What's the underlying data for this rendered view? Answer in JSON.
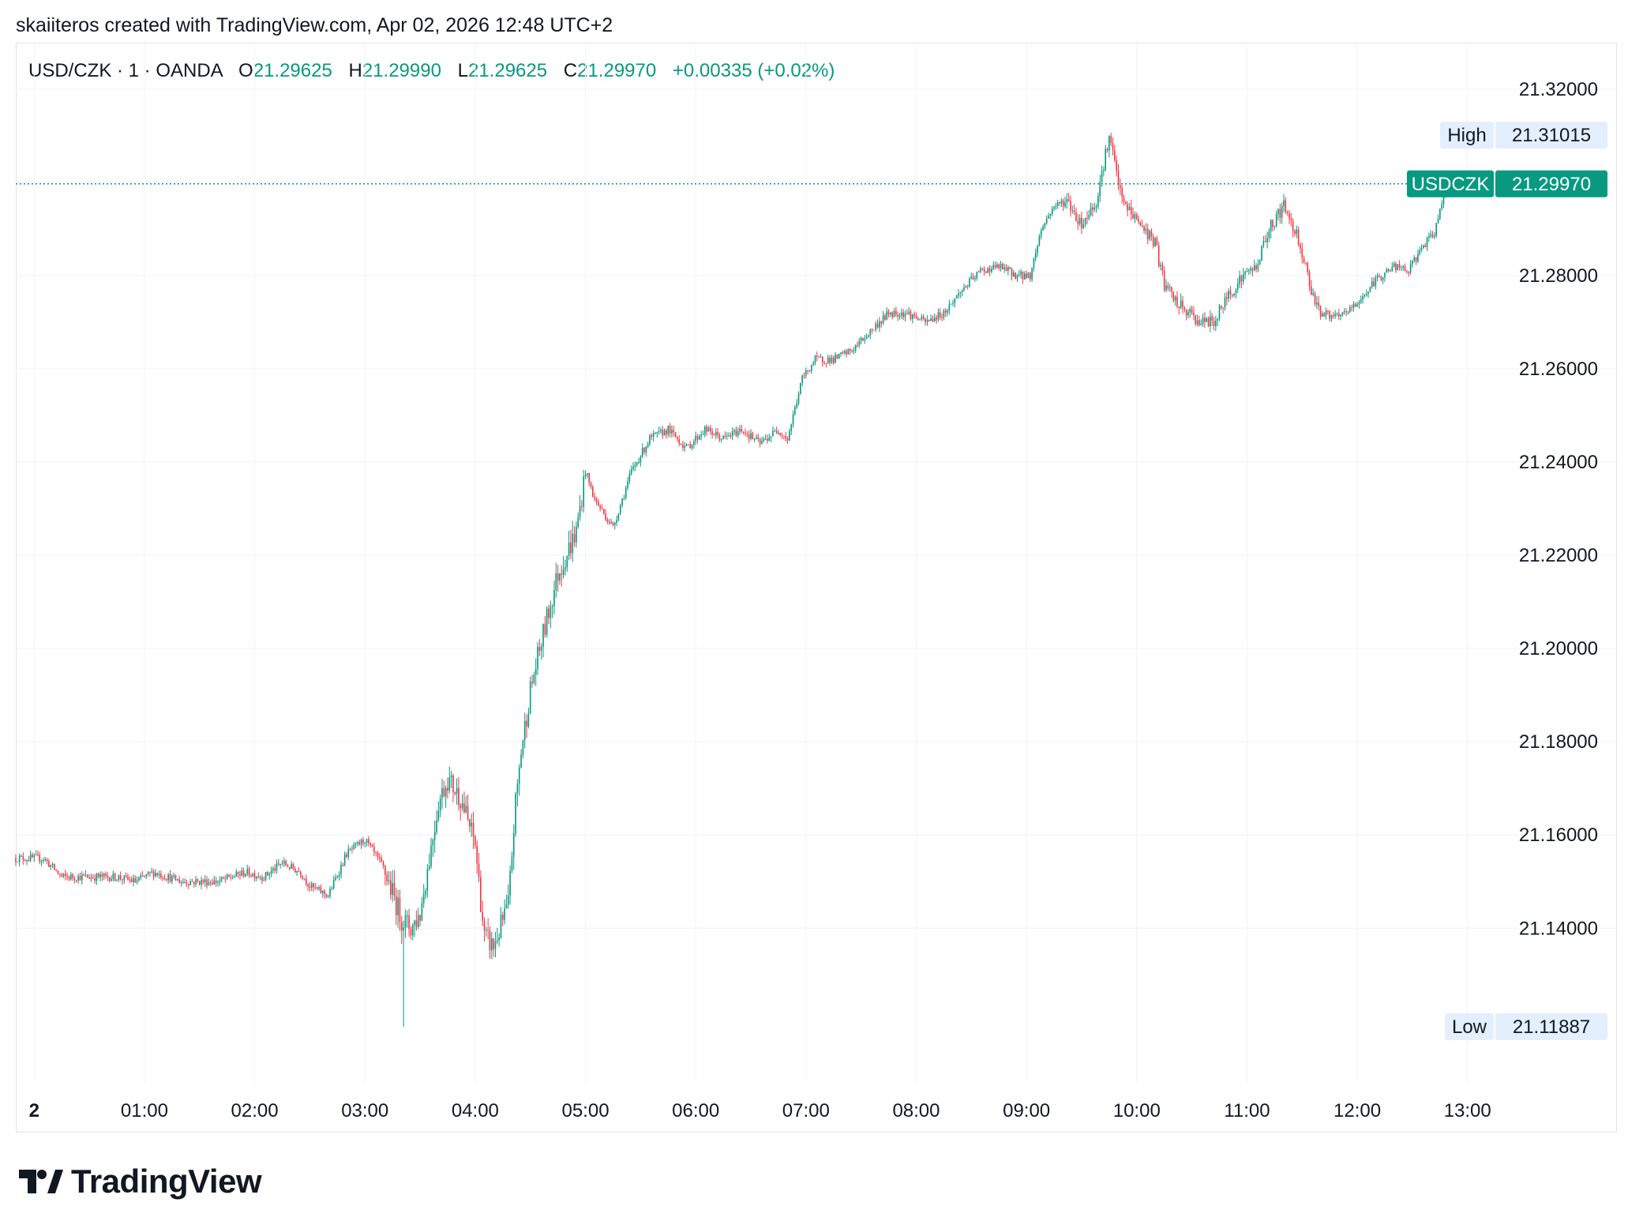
{
  "header": {
    "created_by": "skaiiteros created with TradingView.com, Apr 02, 2026 12:48 UTC+2"
  },
  "legend": {
    "symbol": "USD/CZK · 1 · OANDA",
    "open_label": "O",
    "open": "21.29625",
    "high_label": "H",
    "high": "21.29990",
    "low_label": "L",
    "low": "21.29625",
    "close_label": "C",
    "close": "21.29970",
    "change": "+0.00335 (+0.02%)"
  },
  "price_scale_labels": {
    "high_label": "High",
    "high_value": "21.31015",
    "low_label": "Low",
    "low_value": "21.11887",
    "current_symbol": "USDCZK",
    "current_value": "21.29970"
  },
  "colors": {
    "up": "#089981",
    "down": "#f23645",
    "grid": "#f0f3fa",
    "badge_bg": "#e3effd",
    "text": "#131722"
  },
  "brand": {
    "name": "TradingView"
  },
  "chart_data": {
    "type": "candlestick",
    "title": "USD/CZK · 1 · OANDA",
    "timeframe": "1 minute",
    "y_ticks": [
      "21.32000",
      "21.30000",
      "21.28000",
      "21.26000",
      "21.24000",
      "21.22000",
      "21.20000",
      "21.18000",
      "21.16000",
      "21.14000"
    ],
    "x_ticks": [
      "2",
      "01:00",
      "02:00",
      "03:00",
      "04:00",
      "05:00",
      "06:00",
      "07:00",
      "08:00",
      "09:00",
      "10:00",
      "11:00",
      "12:00",
      "13:00"
    ],
    "ylim": [
      21.107,
      21.33
    ],
    "x_range_minutes": [
      -10,
      790
    ],
    "last_minute": 768,
    "session_high": 21.31015,
    "session_low": 21.11887,
    "last_price": 21.2997,
    "grid": true,
    "path_anchors": [
      [
        -10,
        21.155
      ],
      [
        5,
        21.155
      ],
      [
        15,
        21.151
      ],
      [
        30,
        21.151
      ],
      [
        45,
        21.151
      ],
      [
        55,
        21.15
      ],
      [
        65,
        21.152
      ],
      [
        80,
        21.15
      ],
      [
        100,
        21.15
      ],
      [
        115,
        21.152
      ],
      [
        125,
        21.151
      ],
      [
        135,
        21.154
      ],
      [
        145,
        21.152
      ],
      [
        150,
        21.149
      ],
      [
        160,
        21.147
      ],
      [
        170,
        21.156
      ],
      [
        180,
        21.159
      ],
      [
        190,
        21.153
      ],
      [
        200,
        21.142
      ],
      [
        205,
        21.14
      ],
      [
        210,
        21.143
      ],
      [
        215,
        21.155
      ],
      [
        220,
        21.167
      ],
      [
        225,
        21.172
      ],
      [
        232,
        21.168
      ],
      [
        240,
        21.158
      ],
      [
        245,
        21.138
      ],
      [
        250,
        21.136
      ],
      [
        258,
        21.145
      ],
      [
        262,
        21.167
      ],
      [
        265,
        21.178
      ],
      [
        270,
        21.191
      ],
      [
        277,
        21.203
      ],
      [
        285,
        21.216
      ],
      [
        295,
        21.225
      ],
      [
        300,
        21.238
      ],
      [
        305,
        21.232
      ],
      [
        315,
        21.226
      ],
      [
        325,
        21.238
      ],
      [
        335,
        21.245
      ],
      [
        345,
        21.247
      ],
      [
        355,
        21.243
      ],
      [
        365,
        21.247
      ],
      [
        375,
        21.245
      ],
      [
        385,
        21.247
      ],
      [
        395,
        21.244
      ],
      [
        405,
        21.247
      ],
      [
        410,
        21.245
      ],
      [
        418,
        21.258
      ],
      [
        425,
        21.262
      ],
      [
        435,
        21.262
      ],
      [
        445,
        21.264
      ],
      [
        455,
        21.268
      ],
      [
        465,
        21.272
      ],
      [
        475,
        21.272
      ],
      [
        485,
        21.27
      ],
      [
        495,
        21.272
      ],
      [
        505,
        21.277
      ],
      [
        515,
        21.281
      ],
      [
        525,
        21.282
      ],
      [
        535,
        21.28
      ],
      [
        542,
        21.28
      ],
      [
        548,
        21.29
      ],
      [
        555,
        21.295
      ],
      [
        562,
        21.296
      ],
      [
        570,
        21.291
      ],
      [
        578,
        21.296
      ],
      [
        585,
        21.31
      ],
      [
        592,
        21.296
      ],
      [
        600,
        21.292
      ],
      [
        610,
        21.287
      ],
      [
        615,
        21.278
      ],
      [
        622,
        21.274
      ],
      [
        628,
        21.272
      ],
      [
        635,
        21.27
      ],
      [
        642,
        21.27
      ],
      [
        650,
        21.276
      ],
      [
        658,
        21.28
      ],
      [
        665,
        21.282
      ],
      [
        672,
        21.29
      ],
      [
        680,
        21.295
      ],
      [
        688,
        21.288
      ],
      [
        695,
        21.277
      ],
      [
        700,
        21.272
      ],
      [
        710,
        21.271
      ],
      [
        720,
        21.274
      ],
      [
        730,
        21.279
      ],
      [
        740,
        21.282
      ],
      [
        748,
        21.281
      ],
      [
        755,
        21.286
      ],
      [
        762,
        21.289
      ],
      [
        768,
        21.2997
      ]
    ]
  }
}
